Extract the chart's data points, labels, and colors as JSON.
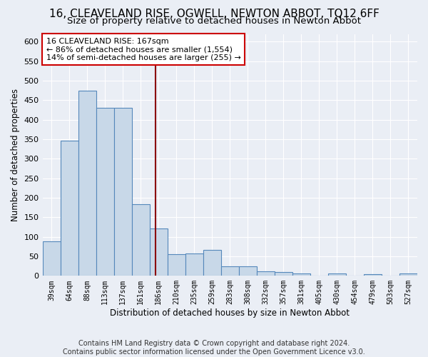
{
  "title": "16, CLEAVELAND RISE, OGWELL, NEWTON ABBOT, TQ12 6FF",
  "subtitle": "Size of property relative to detached houses in Newton Abbot",
  "xlabel": "Distribution of detached houses by size in Newton Abbot",
  "ylabel": "Number of detached properties",
  "categories": [
    "39sqm",
    "64sqm",
    "88sqm",
    "113sqm",
    "137sqm",
    "161sqm",
    "186sqm",
    "210sqm",
    "235sqm",
    "259sqm",
    "283sqm",
    "308sqm",
    "332sqm",
    "357sqm",
    "381sqm",
    "405sqm",
    "430sqm",
    "454sqm",
    "479sqm",
    "503sqm",
    "527sqm"
  ],
  "values": [
    88,
    347,
    475,
    430,
    430,
    183,
    122,
    55,
    58,
    67,
    24,
    24,
    12,
    10,
    7,
    0,
    6,
    0,
    5,
    0,
    7
  ],
  "bar_color": "#c8d8e8",
  "bar_edge_color": "#5588bb",
  "vline_x": 5.85,
  "vline_color": "#8b0000",
  "annotation_line1": "16 CLEAVELAND RISE: 167sqm",
  "annotation_line2": "← 86% of detached houses are smaller (1,554)",
  "annotation_line3": "14% of semi-detached houses are larger (255) →",
  "annotation_box_color": "white",
  "annotation_box_edge": "#cc0000",
  "footer": "Contains HM Land Registry data © Crown copyright and database right 2024.\nContains public sector information licensed under the Open Government Licence v3.0.",
  "ylim": [
    0,
    620
  ],
  "yticks": [
    0,
    50,
    100,
    150,
    200,
    250,
    300,
    350,
    400,
    450,
    500,
    550,
    600
  ],
  "bg_color": "#eaeef5",
  "plot_bg_color": "#eaeef5",
  "title_fontsize": 11,
  "subtitle_fontsize": 9.5
}
